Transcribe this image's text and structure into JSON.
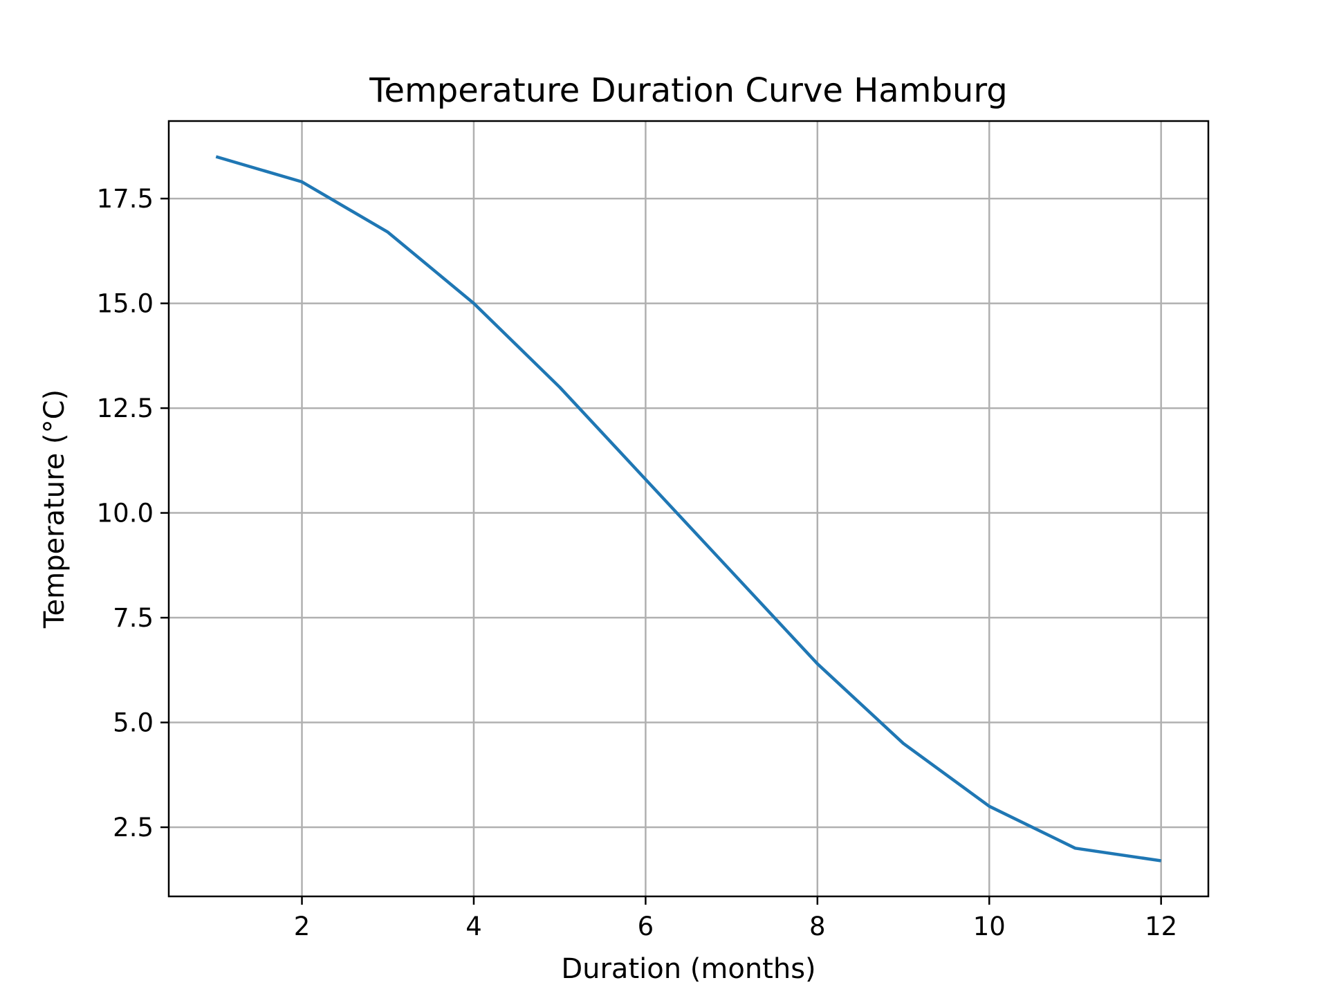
{
  "chart_data": {
    "type": "line",
    "title": "Temperature Duration Curve Hamburg",
    "xlabel": "Duration (months)",
    "ylabel": "Temperature (°C)",
    "xlim": [
      0.45,
      12.55
    ],
    "ylim": [
      0.85,
      19.35
    ],
    "xticks": [
      2,
      4,
      6,
      8,
      10,
      12
    ],
    "xtick_labels": [
      "2",
      "4",
      "6",
      "8",
      "10",
      "12"
    ],
    "yticks": [
      2.5,
      5.0,
      7.5,
      10.0,
      12.5,
      15.0,
      17.5
    ],
    "ytick_labels": [
      "2.5",
      "5.0",
      "7.5",
      "10.0",
      "12.5",
      "15.0",
      "17.5"
    ],
    "grid": true,
    "series": [
      {
        "color": "#1f77b4",
        "x": [
          1,
          2,
          3,
          4,
          5,
          6,
          7,
          8,
          9,
          10,
          11,
          12
        ],
        "y": [
          18.5,
          17.9,
          16.7,
          15.0,
          13.0,
          10.8,
          8.6,
          6.4,
          4.5,
          3.0,
          2.0,
          1.7
        ]
      }
    ]
  }
}
